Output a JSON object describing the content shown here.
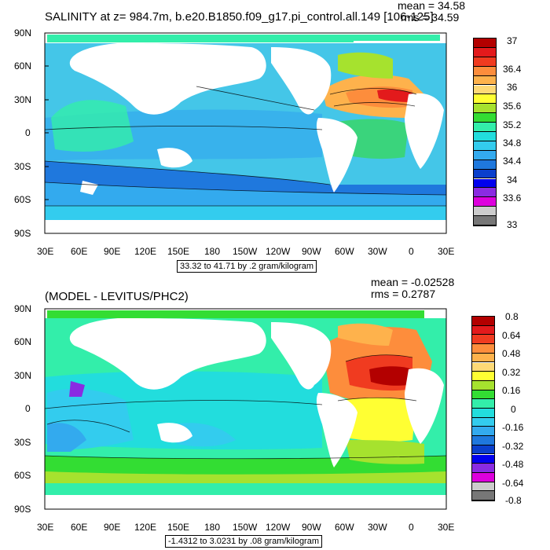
{
  "panel1": {
    "title": "SALINITY at z= 984.7m, b.e20.B1850.f09_g17.pi_control.all.149 [106-125]",
    "mean": "mean = 34.58",
    "rms": "rms = 34.59",
    "range": "33.32 to 41.71 by .2 gram/kilogram",
    "legend_labels": [
      "37",
      "36.4",
      "36",
      "35.6",
      "35.2",
      "34.8",
      "34.4",
      "34",
      "33.6",
      "33"
    ],
    "legend_colors": [
      "#b30000",
      "#e31a1c",
      "#f03b20",
      "#fd8d3c",
      "#feb24c",
      "#fed976",
      "#ffff33",
      "#a6e22e",
      "#33dd33",
      "#33eeaa",
      "#22dddd",
      "#33ccee",
      "#33aaee",
      "#1f78dd",
      "#0a3fcc",
      "#0000ee",
      "#8a2be2",
      "#dd00dd",
      "#cccccc",
      "#777777"
    ]
  },
  "panel2": {
    "title": "(MODEL - LEVITUS/PHC2)",
    "mean": "mean = -0.02528",
    "rms": "rms = 0.2787",
    "range": "-1.4312 to 3.0231 by .08 gram/kilogram",
    "legend_labels": [
      "0.8",
      "0.64",
      "0.48",
      "0.32",
      "0.16",
      "0",
      "-0.16",
      "-0.32",
      "-0.48",
      "-0.64",
      "-0.8"
    ],
    "legend_colors": [
      "#b30000",
      "#e31a1c",
      "#f03b20",
      "#fd8d3c",
      "#feb24c",
      "#fed976",
      "#ffff33",
      "#a6e22e",
      "#33dd33",
      "#33eeaa",
      "#22dddd",
      "#33ccee",
      "#33aaee",
      "#1f78dd",
      "#0a3fcc",
      "#0000ee",
      "#8a2be2",
      "#dd00dd",
      "#cccccc",
      "#777777"
    ]
  },
  "lat_labels": [
    "90N",
    "60N",
    "30N",
    "0",
    "30S",
    "60S",
    "90S"
  ],
  "lon_labels": [
    "30E",
    "60E",
    "90E",
    "120E",
    "150E",
    "180",
    "150W",
    "120W",
    "90W",
    "60W",
    "30W",
    "0",
    "30E"
  ]
}
